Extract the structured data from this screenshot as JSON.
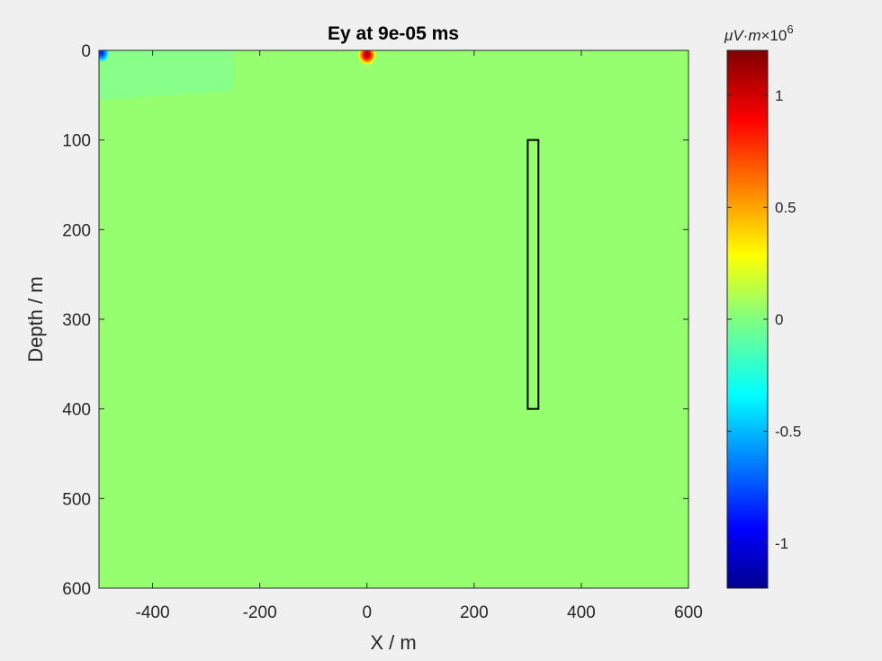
{
  "chart_data": {
    "type": "heatmap",
    "title": "Ey at 9e-05 ms",
    "xlabel": "X / m",
    "ylabel": "Depth / m",
    "xlim": [
      -500,
      600
    ],
    "ylim": [
      0,
      600
    ],
    "y_reversed": true,
    "xticks": [
      -400,
      -200,
      0,
      200,
      400,
      600
    ],
    "yticks": [
      0,
      100,
      200,
      300,
      400,
      500,
      600
    ],
    "colormap": "jet",
    "colorbar": {
      "units_label": "μV·m",
      "multiplier": "×10",
      "exponent": "6",
      "clim": [
        -1.2,
        1.2
      ],
      "ticks": [
        -1,
        -0.5,
        0,
        0.5,
        1
      ],
      "tick_labels": [
        "-1",
        "-0.5",
        "0",
        "0.5",
        "1"
      ]
    },
    "background_value": 0.1,
    "features": [
      {
        "name": "source anomaly",
        "x": 0,
        "depth": 5,
        "value": 1.2
      },
      {
        "name": "corner anomaly",
        "x": -495,
        "depth": 3,
        "value": -0.8
      },
      {
        "name": "near-surface layer",
        "x_range": [
          -500,
          -250
        ],
        "depth_range": [
          0,
          50
        ],
        "value": 0.05
      }
    ],
    "target_box": {
      "x_range": [
        300,
        320
      ],
      "depth_range": [
        100,
        400
      ]
    }
  }
}
